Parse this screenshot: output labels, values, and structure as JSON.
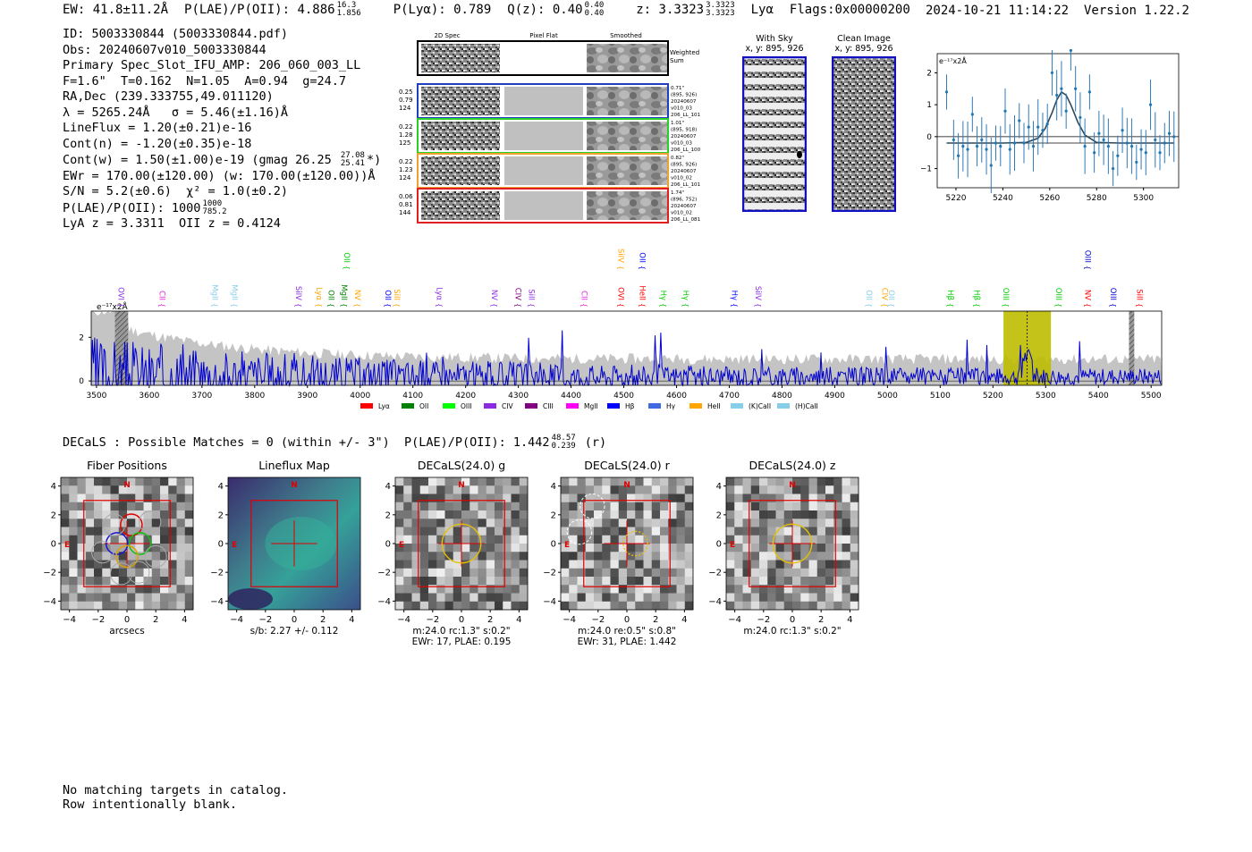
{
  "header": {
    "ew": "EW: 41.8±11.2Å",
    "plae_label": "P(LAE)/P(OII): 4.886",
    "plae_hi": "16.3",
    "plae_lo": "1.856",
    "plya": "P(Lyα): 0.789",
    "qz_label": "Q(z): 0.40",
    "qz_hi": "0.40",
    "qz_lo": "0.40",
    "z_label": "z: 3.3323",
    "z_hi": "3.3323",
    "z_lo": "3.3323",
    "z_line": "Lyα",
    "flags": "Flags:0x00000200",
    "datetime": "2024-10-21 11:14:22",
    "version": "Version 1.22.2"
  },
  "info": {
    "id": "ID: 5003330844 (5003330844.pdf)",
    "obs": "Obs: 20240607v010_5003330844",
    "primary": "Primary Spec_Slot_IFU_AMP: 206_060_003_LL",
    "fline": "F=1.6\"  T=0.162  N=1.05  A=0.94  g=24.7",
    "radec": "RA,Dec (239.333755,49.011120)",
    "lambda": "λ = 5265.24Å   σ = 5.46(±1.16)Å",
    "lineflux": "LineFlux = 1.20(±0.21)e-16",
    "contn": "Cont(n) = -1.20(±0.35)e-18",
    "contw": "Cont(w) = 1.50(±1.00)e-19 (gmag 26.25",
    "contw_hi": "27.08",
    "contw_lo": "25.41",
    "contw_end": "*)",
    "ewr": "EWr = 170.00(±120.00) (w: 170.00(±120.00))Å",
    "sn": "S/N = 5.2(±0.6)  χ² = 1.0(±0.2)",
    "plae": "P(LAE)/P(OII): 1000",
    "plae_hi": "1000",
    "plae_lo": "785.2",
    "lya": "LyA z = 3.3311  OII z = 0.4124"
  },
  "cutouts": {
    "col_2d": "2D Spec",
    "col_flat": "Pixel Flat",
    "col_smooth": "Smoothed",
    "weighted": "Weighted\nSum",
    "rows": [
      {
        "w1": "0.25",
        "w2": "0.79",
        "w3": "124",
        "d": "0.71\"",
        "xy": "(895, 926)",
        "date": "20240607",
        "shot": "v010_03",
        "amp": "206_LL_101",
        "color": "#1f3fbf"
      },
      {
        "w1": "0.22",
        "w2": "1.28",
        "w3": "125",
        "d": "1.01\"",
        "xy": "(895, 918)",
        "date": "20240607",
        "shot": "v010_03",
        "amp": "206_LL_100",
        "color": "#2ad02a"
      },
      {
        "w1": "0.22",
        "w2": "1.23",
        "w3": "124",
        "d": "0.82\"",
        "xy": "(895, 926)",
        "date": "20240607",
        "shot": "v010_02",
        "amp": "206_LL_101",
        "color": "#f0a030"
      },
      {
        "w1": "0.06",
        "w2": "0.81",
        "w3": "144",
        "d": "1.74\"",
        "xy": "(896, 752)",
        "date": "20240607",
        "shot": "v010_02",
        "amp": "206_LL_081",
        "color": "#e02020"
      }
    ]
  },
  "sky": {
    "title": "With Sky",
    "xy": "x, y: 895, 926"
  },
  "clean": {
    "title": "Clean Image",
    "xy": "x, y: 895, 926"
  },
  "zoom_chart": {
    "ylabel": "e⁻¹⁷x2Å",
    "xticks": [
      "5220",
      "5240",
      "5260",
      "5280",
      "5300"
    ],
    "yticks": [
      "2",
      "1",
      "0",
      "−1"
    ]
  },
  "spectrum": {
    "ylabel": "e⁻¹⁷x2Å",
    "xticks": [
      "3500",
      "3600",
      "3700",
      "3800",
      "3900",
      "4000",
      "4100",
      "4200",
      "4300",
      "4400",
      "4500",
      "4600",
      "4700",
      "4800",
      "4900",
      "5000",
      "5100",
      "5200",
      "5300",
      "5400",
      "5500"
    ],
    "yticks": [
      "2",
      "0"
    ],
    "lines": [
      {
        "name": "OVI",
        "x": 3537,
        "tier": 0,
        "color": "#8a2be2"
      },
      {
        "name": "CII",
        "x": 3615,
        "tier": 0,
        "color": "#e020e0"
      },
      {
        "name": "MgII",
        "x": 3715,
        "tier": 0,
        "color": "#87ceeb"
      },
      {
        "name": "MgII",
        "x": 3752,
        "tier": 0,
        "color": "#87ceeb"
      },
      {
        "name": "SiIV",
        "x": 3873,
        "tier": 0,
        "color": "#8a2be2"
      },
      {
        "name": "Lyα",
        "x": 3912,
        "tier": 0,
        "color": "#ffa500"
      },
      {
        "name": "OII",
        "x": 3935,
        "tier": 0,
        "color": "#008000"
      },
      {
        "name": "MgII",
        "x": 3960,
        "tier": 0,
        "color": "#008000"
      },
      {
        "name": "OII",
        "x": 3965,
        "tier": 1,
        "color": "#00cc00"
      },
      {
        "name": "NV",
        "x": 3985,
        "tier": 0,
        "color": "#ffa500"
      },
      {
        "name": "OII",
        "x": 4043,
        "tier": 0,
        "color": "#0000ff"
      },
      {
        "name": "SiII",
        "x": 4060,
        "tier": 0,
        "color": "#ffa500"
      },
      {
        "name": "Lyα",
        "x": 4140,
        "tier": 0,
        "color": "#8a2be2"
      },
      {
        "name": "NV",
        "x": 4245,
        "tier": 0,
        "color": "#8a2be2"
      },
      {
        "name": "CIV",
        "x": 4290,
        "tier": 0,
        "color": "#800080"
      },
      {
        "name": "SiII",
        "x": 4315,
        "tier": 0,
        "color": "#8a2be2"
      },
      {
        "name": "CII",
        "x": 4415,
        "tier": 0,
        "color": "#e020e0"
      },
      {
        "name": "OVI",
        "x": 4485,
        "tier": 0,
        "color": "#ff0000"
      },
      {
        "name": "SiIV",
        "x": 4485,
        "tier": 1,
        "color": "#ffa500"
      },
      {
        "name": "HeII",
        "x": 4525,
        "tier": 0,
        "color": "#ff0000"
      },
      {
        "name": "OII",
        "x": 4525,
        "tier": 1,
        "color": "#0000ff"
      },
      {
        "name": "Hγ",
        "x": 4565,
        "tier": 0,
        "color": "#00cc00"
      },
      {
        "name": "Hγ",
        "x": 4608,
        "tier": 0,
        "color": "#00cc00"
      },
      {
        "name": "Hγ",
        "x": 4700,
        "tier": 0,
        "color": "#0000ff"
      },
      {
        "name": "SiIV",
        "x": 4745,
        "tier": 0,
        "color": "#8a2be2"
      },
      {
        "name": "OII",
        "x": 4955,
        "tier": 0,
        "color": "#87ceeb"
      },
      {
        "name": "CIV",
        "x": 4985,
        "tier": 0,
        "color": "#ffa500"
      },
      {
        "name": "OII",
        "x": 4998,
        "tier": 0,
        "color": "#87ceeb"
      },
      {
        "name": "Hβ",
        "x": 5110,
        "tier": 0,
        "color": "#00cc00"
      },
      {
        "name": "Hβ",
        "x": 5160,
        "tier": 0,
        "color": "#00cc00"
      },
      {
        "name": "OIII",
        "x": 5215,
        "tier": 0,
        "color": "#00cc00"
      },
      {
        "name": "OIII",
        "x": 5315,
        "tier": 0,
        "color": "#00cc00"
      },
      {
        "name": "NV",
        "x": 5370,
        "tier": 0,
        "color": "#ff0000"
      },
      {
        "name": "OIII",
        "x": 5418,
        "tier": 0,
        "color": "#0000cc"
      },
      {
        "name": "OIII",
        "x": 5370,
        "tier": 1,
        "color": "#0000cc"
      },
      {
        "name": "SiII",
        "x": 5468,
        "tier": 0,
        "color": "#ff0000"
      }
    ],
    "legend": [
      {
        "label": "Lyα",
        "color": "#ff0000"
      },
      {
        "label": "OII",
        "color": "#008000"
      },
      {
        "label": "OIII",
        "color": "#00ff00"
      },
      {
        "label": "CIV",
        "color": "#8a2be2"
      },
      {
        "label": "CIII",
        "color": "#800080"
      },
      {
        "label": "MgII",
        "color": "#ff00ff"
      },
      {
        "label": "Hβ",
        "color": "#0000ff"
      },
      {
        "label": "Hγ",
        "color": "#4169e1"
      },
      {
        "label": "HeII",
        "color": "#ffa500"
      },
      {
        "label": "(K)CaII",
        "color": "#87ceeb"
      },
      {
        "label": "(H)CaII",
        "color": "#87ceeb"
      }
    ]
  },
  "decals_line": "DECaLS : Possible Matches = 0 (within +/- 3\")  P(LAE)/P(OII): 1.442",
  "decals_hi": "48.57",
  "decals_lo": "0.239",
  "decals_band": "(r)",
  "panels": [
    {
      "title": "Fiber Positions",
      "cap1": "arcsecs",
      "cap2": ""
    },
    {
      "title": "Lineflux Map",
      "cap1": "s/b: 2.27 +/- 0.112",
      "cap2": ""
    },
    {
      "title": "DECaLS(24.0) g",
      "cap1": "m:24.0 rc:1.3\"  s:0.2\"",
      "cap2": "EWr: 17, PLAE: 0.195"
    },
    {
      "title": "DECaLS(24.0) r",
      "cap1": "m:24.0  re:0.5\"  s:0.8\"",
      "cap2": "EWr: 31, PLAE: 1.442"
    },
    {
      "title": "DECaLS(24.0) z",
      "cap1": "m:24.0 rc:1.3\"  s:0.2\"",
      "cap2": ""
    }
  ],
  "panel_axis": {
    "ticks": [
      "−4",
      "−2",
      "0",
      "2",
      "4"
    ],
    "n": "N",
    "e": "E"
  },
  "footer": {
    "line1": "No matching targets in catalog.",
    "line2": "Row intentionally blank."
  },
  "chart_data": [
    {
      "type": "scatter",
      "title": "",
      "xlabel": "",
      "ylabel": "e⁻¹⁷x2Å",
      "xlim": [
        5212,
        5315
      ],
      "ylim": [
        -1.6,
        2.6
      ],
      "x": [
        5216,
        5219,
        5221,
        5223,
        5225,
        5227,
        5229,
        5231,
        5233,
        5235,
        5237,
        5239,
        5241,
        5243,
        5245,
        5247,
        5249,
        5251,
        5253,
        5255,
        5257,
        5259,
        5261,
        5263,
        5265,
        5267,
        5269,
        5271,
        5273,
        5275,
        5277,
        5279,
        5281,
        5283,
        5285,
        5287,
        5289,
        5291,
        5293,
        5295,
        5297,
        5299,
        5301,
        5303,
        5305,
        5307,
        5309,
        5311,
        5313
      ],
      "y": [
        1.4,
        -0.1,
        -0.6,
        -0.3,
        -0.4,
        0.7,
        -0.3,
        -0.1,
        -0.4,
        -0.9,
        -0.2,
        -0.3,
        0.8,
        -0.4,
        -0.2,
        0.5,
        -0.2,
        0.3,
        -0.3,
        0.3,
        0.2,
        0.4,
        2.0,
        1.3,
        1.5,
        0.8,
        2.7,
        1.5,
        0.6,
        -0.3,
        1.4,
        -0.5,
        0.1,
        -0.1,
        -0.3,
        -1.0,
        -0.6,
        0.2,
        -0.2,
        -0.3,
        -0.8,
        -0.4,
        -0.5,
        1.0,
        -0.1,
        -0.5,
        -0.2,
        0.1,
        0.0
      ],
      "model_x": [
        5216,
        5240,
        5250,
        5255,
        5258,
        5261,
        5263,
        5265,
        5267,
        5269,
        5272,
        5275,
        5280,
        5290,
        5313
      ],
      "model_y": [
        -0.2,
        -0.2,
        -0.18,
        -0.05,
        0.25,
        0.75,
        1.15,
        1.4,
        1.3,
        1.0,
        0.45,
        0.05,
        -0.18,
        -0.2,
        -0.2
      ]
    },
    {
      "type": "line",
      "title": "",
      "xlabel": "",
      "ylabel": "e⁻¹⁷x2Å",
      "xlim": [
        3490,
        5520
      ],
      "ylim": [
        -0.2,
        3.2
      ],
      "highlight_range": [
        5220,
        5310
      ],
      "line_x": 5265,
      "hatched_ranges": [
        [
          3535,
          3560
        ],
        [
          5458,
          5468
        ]
      ]
    }
  ]
}
